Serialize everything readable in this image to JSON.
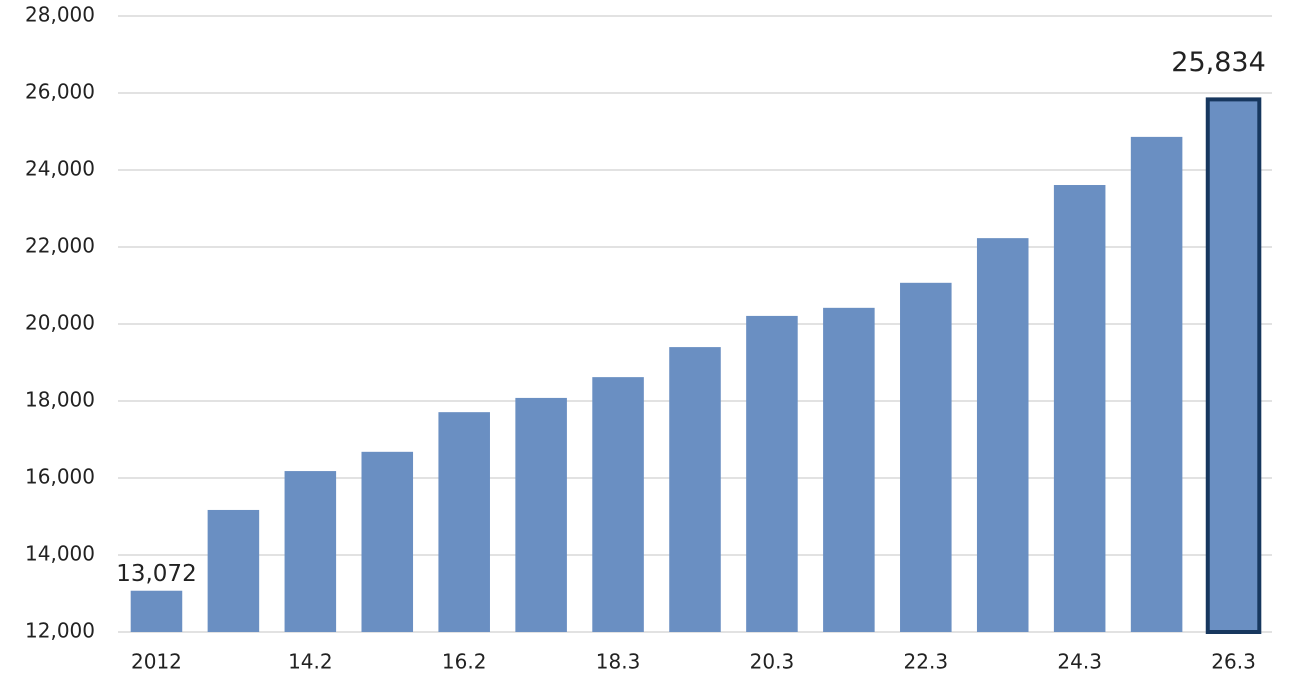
{
  "chart_data": {
    "type": "bar",
    "categories": [
      "2012",
      null,
      "14.2",
      null,
      "16.2",
      null,
      "18.3",
      null,
      "20.3",
      null,
      "22.3",
      null,
      "24.3",
      null,
      "26.3"
    ],
    "values": [
      13072,
      15170,
      16180,
      16680,
      17710,
      18080,
      18620,
      19400,
      20210,
      20420,
      21070,
      22230,
      23610,
      24860,
      25834
    ],
    "value_labels": [
      "13,072",
      null,
      null,
      null,
      null,
      null,
      null,
      null,
      null,
      null,
      null,
      null,
      null,
      null,
      "25,834"
    ],
    "color": "#6a8fc2",
    "highlight": {
      "index": 14,
      "stroke": "#17375e"
    },
    "ylim": [
      12000,
      28000
    ],
    "yticks": [
      {
        "value": 12000,
        "label": "12,000"
      },
      {
        "value": 14000,
        "label": "14,000"
      },
      {
        "value": 16000,
        "label": "16,000"
      },
      {
        "value": 18000,
        "label": "18,000"
      },
      {
        "value": 20000,
        "label": "20,000"
      },
      {
        "value": 22000,
        "label": "22,000"
      },
      {
        "value": 24000,
        "label": "24,000"
      },
      {
        "value": 26000,
        "label": "26,000"
      },
      {
        "value": 28000,
        "label": "28,000"
      }
    ],
    "grid": true
  }
}
